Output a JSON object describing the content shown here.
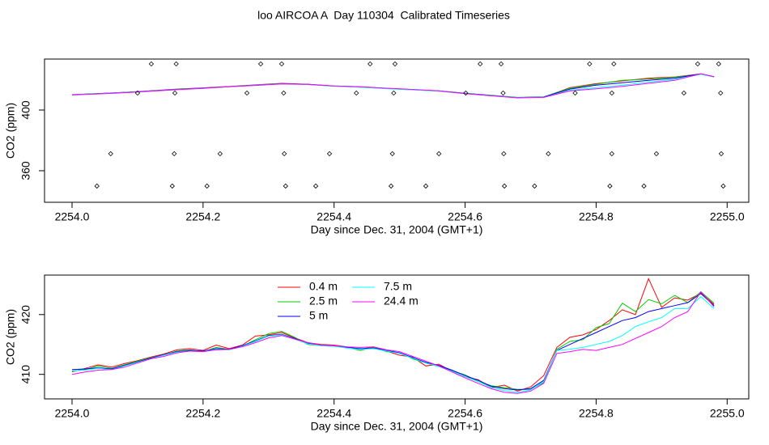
{
  "title": "loo AIRCOA A  Day 110304  Calibrated Timeseries",
  "chart_data": [
    {
      "type": "line",
      "xlabel": "Day since Dec. 31, 2004 (GMT+1)",
      "ylabel": "CO2 (ppm)",
      "xlim": [
        2253.958,
        2255.033
      ],
      "ylim": [
        339.2,
        433.6
      ],
      "xticks": [
        {
          "value": 2254,
          "label": "2254.0"
        },
        2254.2,
        2254.4,
        2254.6,
        2254.8,
        {
          "value": 2255,
          "label": "2255.0"
        }
      ],
      "yticks": [
        360,
        400
      ],
      "x": [
        2254.0,
        2254.04,
        2254.08,
        2254.12,
        2254.16,
        2254.2,
        2254.24,
        2254.28,
        2254.32,
        2254.36,
        2254.4,
        2254.44,
        2254.48,
        2254.52,
        2254.56,
        2254.6,
        2254.64,
        2254.68,
        2254.72,
        2254.76,
        2254.8,
        2254.84,
        2254.88,
        2254.92,
        2254.96,
        2254.98
      ],
      "series": [
        {
          "color": "#ff0000",
          "values": [
            410.2,
            410.9,
            411.7,
            412.7,
            413.8,
            414.6,
            415.5,
            416.6,
            417.6,
            417.0,
            415.9,
            415.3,
            414.3,
            413.5,
            412.5,
            410.9,
            409.5,
            408.1,
            408.5,
            414.8,
            417.4,
            419.2,
            421.0,
            421.8,
            423.9,
            422.0
          ]
        },
        {
          "color": "#00cd00",
          "values": [
            410.0,
            410.9,
            411.6,
            412.5,
            413.7,
            414.4,
            415.4,
            416.5,
            417.5,
            416.8,
            415.8,
            415.1,
            414.3,
            413.4,
            412.7,
            411.1,
            409.7,
            408.3,
            408.7,
            414.4,
            417.0,
            419.6,
            420.4,
            421.6,
            423.7,
            421.9
          ]
        },
        {
          "color": "#0000ff",
          "values": [
            410.1,
            410.8,
            411.6,
            412.6,
            413.6,
            414.5,
            415.4,
            416.4,
            417.4,
            416.9,
            415.8,
            415.2,
            414.2,
            413.4,
            412.6,
            411.0,
            409.6,
            408.2,
            408.6,
            413.8,
            416.4,
            418.0,
            419.6,
            421.0,
            423.8,
            421.9
          ]
        },
        {
          "color": "#00ffff",
          "values": [
            410.1,
            410.7,
            411.5,
            412.5,
            413.5,
            414.4,
            415.3,
            416.3,
            417.3,
            416.8,
            415.7,
            415.1,
            414.1,
            413.3,
            412.5,
            410.9,
            409.5,
            408.1,
            408.4,
            413.0,
            414.8,
            416.4,
            418.4,
            420.2,
            423.5,
            421.8
          ]
        },
        {
          "color": "#ff00ff",
          "values": [
            409.9,
            410.6,
            411.4,
            412.4,
            413.4,
            414.3,
            415.4,
            416.2,
            417.2,
            416.9,
            415.9,
            415.3,
            414.4,
            413.6,
            412.7,
            410.8,
            409.4,
            408.0,
            408.3,
            412.6,
            414.0,
            415.6,
            417.6,
            419.6,
            423.9,
            421.9
          ]
        }
      ],
      "points": {
        "color": "#000000",
        "x": [
          2254.121,
          2254.159,
          2254.288,
          2254.32,
          2254.455,
          2254.493,
          2254.623,
          2254.655,
          2254.79,
          2254.827,
          2254.955,
          2254.987,
          2254.1,
          2254.157,
          2254.267,
          2254.323,
          2254.434,
          2254.491,
          2254.601,
          2254.658,
          2254.768,
          2254.824,
          2254.934,
          2254.99,
          2254.059,
          2254.156,
          2254.226,
          2254.324,
          2254.393,
          2254.489,
          2254.56,
          2254.659,
          2254.727,
          2254.824,
          2254.892,
          2254.991,
          2254.038,
          2254.153,
          2254.206,
          2254.326,
          2254.372,
          2254.487,
          2254.54,
          2254.66,
          2254.706,
          2254.821,
          2254.873,
          2254.994
        ],
        "y": [
          430.4,
          430.4,
          430.4,
          430.4,
          430.4,
          430.4,
          430.4,
          430.4,
          430.4,
          430.4,
          430.4,
          430.4,
          411.2,
          411.2,
          411.2,
          411.2,
          411.2,
          411.2,
          411.2,
          411.2,
          411.2,
          411.2,
          411.2,
          411.2,
          371.2,
          371.2,
          371.2,
          371.2,
          371.2,
          371.2,
          371.2,
          371.2,
          371.2,
          371.2,
          371.2,
          371.2,
          349.9,
          349.9,
          349.9,
          349.9,
          349.9,
          349.9,
          349.9,
          349.9,
          349.9,
          349.9,
          349.9,
          349.9
        ]
      }
    },
    {
      "type": "line",
      "xlabel": "Day since Dec. 31, 2004 (GMT+1)",
      "ylabel": "CO2 (ppm)",
      "xlim": [
        2253.958,
        2255.033
      ],
      "ylim": [
        405.9,
        426.6
      ],
      "xticks": [
        {
          "value": 2254,
          "label": "2254.0"
        },
        2254.2,
        2254.4,
        2254.6,
        2254.8,
        {
          "value": 2255,
          "label": "2255.0"
        }
      ],
      "yticks": [
        410,
        420
      ],
      "x": [
        2254.0,
        2254.02,
        2254.04,
        2254.06,
        2254.08,
        2254.1,
        2254.12,
        2254.14,
        2254.16,
        2254.18,
        2254.2,
        2254.22,
        2254.24,
        2254.26,
        2254.28,
        2254.3,
        2254.32,
        2254.34,
        2254.36,
        2254.38,
        2254.4,
        2254.42,
        2254.44,
        2254.46,
        2254.48,
        2254.5,
        2254.52,
        2254.54,
        2254.56,
        2254.58,
        2254.6,
        2254.62,
        2254.64,
        2254.66,
        2254.68,
        2254.7,
        2254.72,
        2254.74,
        2254.76,
        2254.78,
        2254.8,
        2254.82,
        2254.84,
        2254.86,
        2254.88,
        2254.9,
        2254.92,
        2254.94,
        2254.96,
        2254.98
      ],
      "series": [
        {
          "name": "0.4 m",
          "color": "#ff0000",
          "values": [
            410.4,
            411.0,
            411.6,
            411.2,
            411.8,
            412.3,
            412.9,
            413.4,
            414.1,
            414.3,
            414.0,
            414.9,
            414.3,
            414.9,
            416.4,
            416.6,
            417.0,
            416.1,
            415.3,
            415.0,
            414.9,
            414.6,
            414.2,
            414.6,
            413.9,
            413.2,
            412.9,
            411.4,
            411.7,
            410.5,
            409.6,
            409.1,
            407.8,
            408.2,
            407.2,
            407.9,
            409.8,
            414.5,
            416.2,
            416.6,
            417.5,
            419.0,
            420.8,
            420.0,
            426.0,
            421.2,
            422.8,
            422.4,
            423.6,
            421.7
          ]
        },
        {
          "name": "2.5 m",
          "color": "#00cd00",
          "values": [
            410.5,
            410.8,
            411.4,
            411.0,
            411.6,
            412.2,
            412.8,
            413.2,
            413.9,
            414.1,
            413.8,
            414.5,
            414.2,
            414.7,
            415.8,
            416.8,
            417.2,
            416.2,
            415.0,
            414.8,
            414.7,
            414.5,
            414.0,
            414.5,
            413.8,
            413.6,
            412.6,
            411.9,
            411.3,
            410.6,
            409.9,
            408.8,
            408.1,
            407.8,
            407.5,
            407.5,
            408.6,
            414.2,
            415.5,
            415.8,
            417.8,
            418.5,
            421.9,
            420.5,
            422.5,
            421.8,
            423.2,
            422.0,
            423.8,
            421.9
          ]
        },
        {
          "name": "5 m",
          "color": "#0000ff",
          "values": [
            410.8,
            410.9,
            411.1,
            410.9,
            411.5,
            412.1,
            412.7,
            413.3,
            413.8,
            414.0,
            413.9,
            414.3,
            414.2,
            414.8,
            415.6,
            416.5,
            416.7,
            416.0,
            415.2,
            414.9,
            414.8,
            414.5,
            414.3,
            414.4,
            414.0,
            413.6,
            412.8,
            412.0,
            411.5,
            410.7,
            409.8,
            409.0,
            408.0,
            407.6,
            407.4,
            407.6,
            409.0,
            414.0,
            415.0,
            416.0,
            417.0,
            418.0,
            419.0,
            419.5,
            420.5,
            421.0,
            421.5,
            422.0,
            423.5,
            421.5
          ]
        },
        {
          "name": "7.5 m",
          "color": "#00ffff",
          "values": [
            410.6,
            410.7,
            411.0,
            410.8,
            411.4,
            412.0,
            412.6,
            413.2,
            413.7,
            413.9,
            413.8,
            414.2,
            414.1,
            414.7,
            415.5,
            416.4,
            416.6,
            415.9,
            415.1,
            414.8,
            414.7,
            414.4,
            414.2,
            414.3,
            413.9,
            413.5,
            412.7,
            411.9,
            411.3,
            410.5,
            409.6,
            408.8,
            407.8,
            407.3,
            407.0,
            407.4,
            408.8,
            414.0,
            414.2,
            414.5,
            415.0,
            415.5,
            416.5,
            418.0,
            418.8,
            419.5,
            421.0,
            421.0,
            423.0,
            421.0
          ]
        },
        {
          "name": "24.4 m",
          "color": "#ff00ff",
          "values": [
            410.0,
            410.4,
            410.7,
            410.8,
            411.2,
            411.9,
            412.6,
            413.0,
            413.6,
            413.9,
            413.8,
            414.1,
            414.2,
            414.6,
            415.3,
            416.1,
            416.5,
            415.9,
            415.3,
            414.9,
            414.8,
            414.6,
            414.5,
            414.6,
            414.1,
            413.8,
            413.0,
            412.2,
            411.4,
            410.4,
            409.4,
            408.5,
            407.6,
            407.0,
            406.8,
            407.2,
            408.5,
            413.5,
            413.8,
            414.2,
            414.0,
            414.5,
            415.0,
            416.0,
            417.0,
            418.0,
            419.5,
            420.5,
            423.8,
            421.3
          ]
        }
      ]
    }
  ]
}
